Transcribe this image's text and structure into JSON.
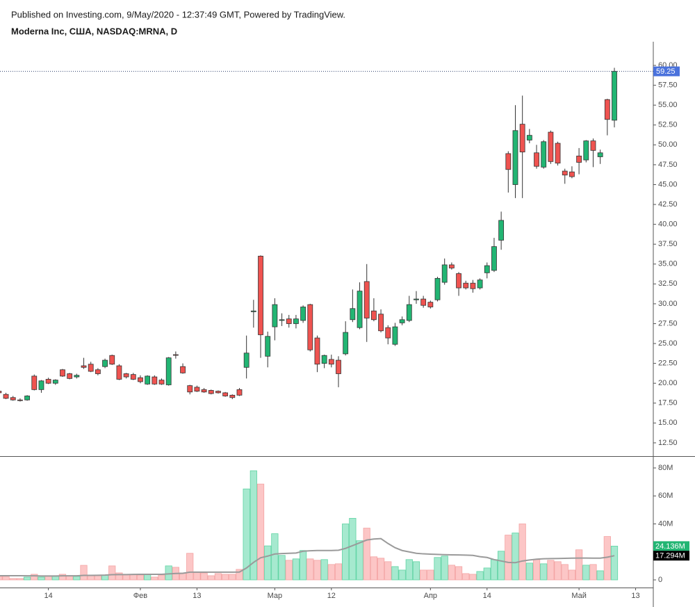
{
  "chart_data": [
    {
      "type": "candlestick",
      "subtitle": "Published on Investing.com, 9/May/2020 - 12:37:49 GMT, Powered by TradingView.",
      "title": "Moderna Inc, США, NASDAQ:MRNA, D",
      "xlim": [
        0.16,
        92.5
      ],
      "ylim": [
        10.83,
        62.98
      ],
      "yticks": [
        {
          "value": 12.5,
          "label": "12.50"
        },
        {
          "value": 15,
          "label": "15.00"
        },
        {
          "value": 17.5,
          "label": "17.50"
        },
        {
          "value": 20,
          "label": "20.00"
        },
        {
          "value": 22.5,
          "label": "22.50"
        },
        {
          "value": 25,
          "label": "25.00"
        },
        {
          "value": 27.5,
          "label": "27.50"
        },
        {
          "value": 30,
          "label": "30.00"
        },
        {
          "value": 32.5,
          "label": "32.50"
        },
        {
          "value": 35,
          "label": "35.00"
        },
        {
          "value": 37.5,
          "label": "37.50"
        },
        {
          "value": 40,
          "label": "40.00"
        },
        {
          "value": 42.5,
          "label": "42.50"
        },
        {
          "value": 45,
          "label": "45.00"
        },
        {
          "value": 47.5,
          "label": "47.50"
        },
        {
          "value": 50,
          "label": "50.00"
        },
        {
          "value": 52.5,
          "label": "52.50"
        },
        {
          "value": 55,
          "label": "55.00"
        },
        {
          "value": 57.5,
          "label": "57.50"
        },
        {
          "value": 60,
          "label": "60.00"
        }
      ],
      "grid": false,
      "up_color": "#22b573",
      "down_color": "#ef5350",
      "last_price_color": "#4a72dc",
      "open": [
        19.0,
        18.6,
        18.2,
        17.9,
        17.9,
        20.9,
        19.2,
        20.5,
        20.0,
        21.7,
        21.2,
        20.8,
        22.2,
        22.4,
        21.7,
        22.1,
        23.5,
        22.2,
        21.2,
        21.1,
        20.7,
        19.9,
        20.8,
        20.4,
        19.8,
        23.6,
        22.1,
        19.7,
        19.5,
        19.2,
        19.1,
        19.0,
        18.8,
        18.5,
        19.2,
        22.0,
        29.0,
        36.0,
        23.4,
        27.1,
        27.9,
        28.1,
        27.5,
        27.9,
        29.9,
        25.7,
        22.5,
        23.0,
        22.9,
        23.7,
        28.0,
        27.0,
        32.8,
        29.1,
        28.7,
        27.0,
        24.9,
        27.6,
        27.9,
        30.5,
        30.6,
        30.2,
        30.5,
        32.7,
        34.9,
        33.8,
        32.6,
        32.6,
        32.0,
        33.9,
        34.2,
        38.0,
        48.9,
        45.0,
        52.6,
        50.6,
        49.0,
        47.2,
        51.6,
        50.2,
        46.7,
        46.6,
        48.6,
        48.1,
        50.5,
        48.5,
        55.7,
        53.1
      ],
      "high": [
        19.2,
        18.8,
        18.4,
        18.1,
        18.5,
        21.1,
        20.4,
        20.7,
        20.5,
        21.8,
        21.3,
        21.2,
        23.2,
        22.7,
        21.9,
        23.1,
        23.6,
        22.4,
        21.3,
        21.3,
        21.0,
        21.0,
        21.0,
        20.6,
        23.3,
        24.0,
        22.5,
        19.8,
        19.7,
        19.4,
        19.2,
        19.1,
        18.9,
        18.6,
        19.4,
        26.0,
        30.5,
        36.1,
        26.5,
        30.7,
        28.8,
        28.6,
        28.6,
        29.8,
        30.0,
        26.0,
        23.6,
        23.6,
        23.4,
        27.8,
        31.8,
        32.7,
        35.0,
        30.7,
        29.3,
        27.3,
        27.6,
        28.4,
        31.0,
        31.6,
        31.0,
        30.4,
        33.4,
        35.7,
        35.2,
        34.0,
        32.9,
        33.0,
        33.2,
        35.2,
        38.3,
        41.6,
        49.2,
        55.0,
        56.2,
        52.0,
        50.0,
        50.6,
        51.8,
        50.4,
        47.0,
        47.3,
        49.6,
        50.6,
        50.8,
        49.4,
        55.8,
        59.7
      ],
      "low": [
        18.7,
        18.0,
        17.8,
        17.7,
        17.8,
        19.1,
        18.8,
        19.9,
        19.8,
        20.8,
        20.5,
        20.6,
        21.8,
        21.4,
        21.0,
        21.9,
        22.3,
        20.4,
        20.6,
        20.4,
        20.0,
        19.8,
        19.8,
        19.8,
        19.7,
        23.1,
        21.2,
        18.6,
        18.9,
        18.8,
        18.6,
        18.7,
        18.3,
        18.0,
        18.4,
        20.6,
        27.0,
        23.2,
        22.0,
        25.4,
        27.2,
        27.0,
        26.9,
        27.6,
        24.0,
        21.4,
        21.9,
        22.0,
        19.5,
        23.5,
        27.7,
        26.8,
        25.2,
        27.8,
        26.4,
        24.9,
        24.7,
        27.3,
        27.7,
        30.0,
        29.5,
        29.4,
        30.3,
        32.4,
        34.3,
        31.0,
        31.8,
        31.4,
        31.8,
        33.2,
        34.0,
        36.8,
        44.0,
        43.3,
        43.3,
        50.2,
        47.0,
        47.0,
        47.6,
        47.4,
        45.1,
        45.8,
        46.3,
        47.8,
        47.2,
        47.6,
        51.2,
        52.2
      ],
      "close": [
        18.8,
        18.1,
        17.9,
        17.85,
        18.4,
        19.2,
        20.3,
        20.0,
        20.4,
        20.9,
        20.6,
        21.0,
        22.0,
        21.5,
        21.2,
        22.9,
        22.4,
        20.5,
        20.8,
        20.5,
        20.2,
        20.9,
        19.9,
        19.9,
        23.2,
        23.55,
        21.3,
        18.9,
        19.0,
        18.9,
        18.7,
        18.8,
        18.4,
        18.2,
        18.5,
        23.8,
        29.1,
        26.1,
        25.9,
        29.9,
        28.0,
        27.5,
        28.1,
        29.6,
        24.2,
        22.4,
        23.5,
        22.4,
        21.2,
        26.4,
        29.4,
        31.6,
        28.2,
        28.0,
        26.6,
        25.7,
        27.1,
        28.0,
        29.9,
        30.6,
        29.8,
        29.6,
        33.2,
        34.9,
        34.5,
        32.0,
        32.0,
        31.9,
        33.0,
        34.8,
        37.2,
        40.5,
        46.9,
        51.8,
        49.1,
        51.2,
        47.3,
        50.4,
        47.9,
        47.7,
        46.2,
        46.0,
        47.8,
        50.5,
        49.3,
        49.0,
        53.2,
        59.25
      ]
    },
    {
      "type": "bar",
      "xlim": [
        0.16,
        92.5
      ],
      "xticks": [
        {
          "value": 7,
          "label": "14"
        },
        {
          "value": 20,
          "label": "Фев"
        },
        {
          "value": 28,
          "label": "13"
        },
        {
          "value": 39,
          "label": "Мар"
        },
        {
          "value": 47,
          "label": "12"
        },
        {
          "value": 61,
          "label": "Апр"
        },
        {
          "value": 69,
          "label": "14"
        },
        {
          "value": 82,
          "label": "Май"
        },
        {
          "value": 90,
          "label": "13"
        }
      ],
      "ylim": [
        -5470000,
        87950000
      ],
      "yticks": [
        0,
        {
          "value": 20000000,
          "label": "20M"
        },
        {
          "value": 40000000,
          "label": "40M"
        },
        {
          "value": 60000000,
          "label": "60M"
        },
        {
          "value": 80000000,
          "label": "80M"
        }
      ],
      "up_color": "#a6e9cf",
      "up_edge": "#5fd3a3",
      "down_color": "#fcc6c6",
      "down_edge": "#f3a3a3",
      "series": [
        {
          "type": "bar",
          "values": [
            2500000,
            2500000,
            1000000,
            1000000,
            2000000,
            4000000,
            2000000,
            3000000,
            2500000,
            4000000,
            3000000,
            2500000,
            10400000,
            3000000,
            3000000,
            3500000,
            10000000,
            5000000,
            4000000,
            4000000,
            3500000,
            4000000,
            2000000,
            3500000,
            10000000,
            9000000,
            5000000,
            19000000,
            5500000,
            5000000,
            3000000,
            4500000,
            4000000,
            4000000,
            7500000,
            65000000,
            78000000,
            68500000,
            24300000,
            33000000,
            17500000,
            14000000,
            15000000,
            21000000,
            15000000,
            14000000,
            14500000,
            11000000,
            11500000,
            40000000,
            44000000,
            28000000,
            37000000,
            16500000,
            15500000,
            13000000,
            9500000,
            7000000,
            14500000,
            13000000,
            7000000,
            7000000,
            16000000,
            17000000,
            10500000,
            9500000,
            4500000,
            4000000,
            6000000,
            8500000,
            14500000,
            20500000,
            32000000,
            33500000,
            40000000,
            12000000,
            14500000,
            11500000,
            14000000,
            13000000,
            11000000,
            7000000,
            21500000,
            10500000,
            11000000,
            6500000,
            31000000,
            24136000
          ],
          "value_labels": [
            null,
            null,
            null,
            null,
            null,
            null,
            null,
            null,
            null,
            null,
            null,
            null,
            null,
            null,
            null,
            null,
            null,
            null,
            null,
            null,
            null,
            null,
            null,
            null,
            null,
            null,
            null,
            null,
            null,
            null,
            null,
            null,
            null,
            null,
            null,
            null,
            null,
            null,
            null,
            null,
            null,
            null,
            null,
            null,
            null,
            null,
            null,
            null,
            null,
            null,
            null,
            null,
            null,
            null,
            null,
            null,
            null,
            null,
            null,
            null,
            null,
            null,
            null,
            null,
            null,
            null,
            null,
            null,
            null,
            null,
            null,
            null,
            null,
            null,
            null,
            null,
            null,
            null,
            null,
            null,
            null,
            null,
            null,
            null,
            null,
            null,
            null,
            "24.136M"
          ]
        },
        {
          "type": "line",
          "color": "#9a9a9a",
          "values": [
            3000000,
            3000000,
            3000000,
            3000000,
            2900000,
            2900000,
            2800000,
            2800000,
            2800000,
            2900000,
            2900000,
            2900000,
            3200000,
            3200000,
            3300000,
            3400000,
            3700000,
            3800000,
            3800000,
            3900000,
            4000000,
            4000000,
            4000000,
            4000000,
            4300000,
            4600000,
            4700000,
            5500000,
            5500000,
            5500000,
            5500000,
            5500000,
            5500000,
            5500000,
            5600000,
            8500000,
            12500000,
            15800000,
            17000000,
            18500000,
            18800000,
            19000000,
            19200000,
            20500000,
            20800000,
            21000000,
            21000000,
            21000000,
            21200000,
            22500000,
            24500000,
            26500000,
            28500000,
            29200000,
            29500000,
            26000000,
            23000000,
            21000000,
            20000000,
            19000000,
            18600000,
            18400000,
            18200000,
            18000000,
            17900000,
            17800000,
            17700000,
            17500000,
            16600000,
            16000000,
            14500000,
            13500000,
            12500000,
            12300000,
            13500000,
            14200000,
            14800000,
            15100000,
            15200000,
            15300000,
            15400000,
            15500000,
            15600000,
            15600000,
            15500000,
            15500000,
            16200000,
            17294000
          ],
          "value_labels": [
            null,
            null,
            null,
            null,
            null,
            null,
            null,
            null,
            null,
            null,
            null,
            null,
            null,
            null,
            null,
            null,
            null,
            null,
            null,
            null,
            null,
            null,
            null,
            null,
            null,
            null,
            null,
            null,
            null,
            null,
            null,
            null,
            null,
            null,
            null,
            null,
            null,
            null,
            null,
            null,
            null,
            null,
            null,
            null,
            null,
            null,
            null,
            null,
            null,
            null,
            null,
            null,
            null,
            null,
            null,
            null,
            null,
            null,
            null,
            null,
            null,
            null,
            null,
            null,
            null,
            null,
            null,
            null,
            null,
            null,
            null,
            null,
            null,
            null,
            null,
            null,
            null,
            null,
            null,
            null,
            null,
            null,
            null,
            null,
            null,
            null,
            null,
            "17.294M"
          ]
        }
      ]
    }
  ]
}
